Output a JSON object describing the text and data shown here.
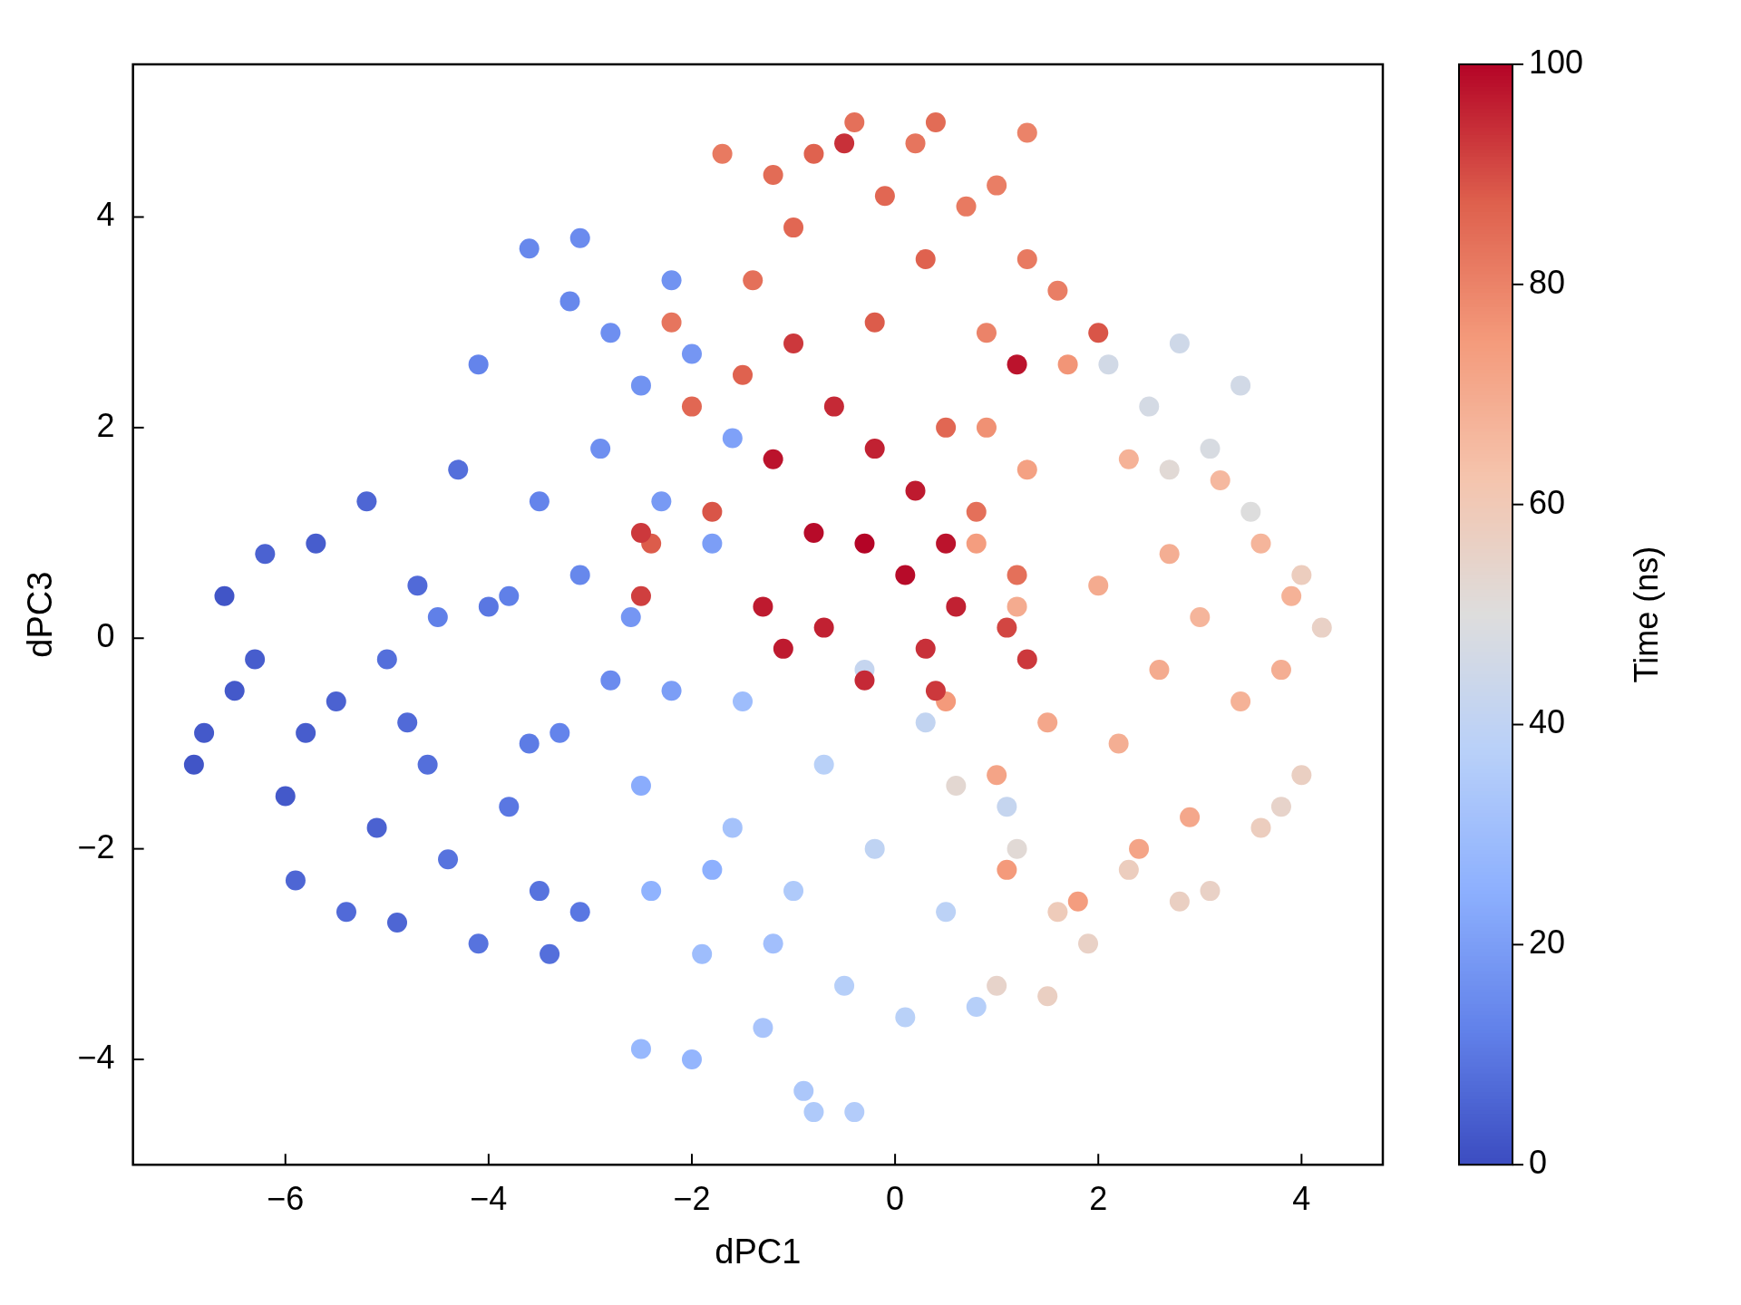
{
  "chart_data": {
    "type": "scatter",
    "xlabel": "dPC1",
    "ylabel": "dPC3",
    "clabel": "Time (ns)",
    "marker": "circle",
    "xlim": [
      -7.5,
      4.8
    ],
    "ylim": [
      -5,
      5.45
    ],
    "xticks": [
      -6,
      -4,
      -2,
      0,
      2,
      4
    ],
    "yticks": [
      -4,
      -2,
      0,
      2,
      4
    ],
    "clim": [
      0,
      100
    ],
    "cticks": [
      0,
      20,
      40,
      60,
      80,
      100
    ],
    "x": [
      -6.8,
      -6.6,
      -6.3,
      -6.2,
      -6.0,
      -5.9,
      -5.7,
      -5.5,
      -5.4,
      -5.2,
      -5.1,
      -5.0,
      -4.9,
      -4.7,
      -4.6,
      -4.4,
      -4.3,
      -4.1,
      -4.0,
      -3.8,
      -3.5,
      -3.4,
      -6.9,
      -6.5,
      -5.8,
      -4.8,
      -3.6,
      -3.1,
      -4.1,
      -3.6,
      -3.1,
      -3.2,
      -2.8,
      -2.2,
      -3.5,
      -2.9,
      -2.5,
      -3.8,
      -3.1,
      -2.6,
      -2.3,
      -2.0,
      -1.8,
      -2.2,
      -2.8,
      -3.3,
      -1.6,
      -4.5,
      -2.5,
      -2.4,
      -2.5,
      -2.0,
      -1.9,
      -1.6,
      -1.5,
      -1.3,
      -1.0,
      -0.9,
      -0.7,
      -0.5,
      -0.4,
      -0.2,
      0.1,
      0.3,
      0.5,
      0.8,
      1.1,
      -0.8,
      -1.2,
      -0.3,
      -1.8,
      1.0,
      1.5,
      1.9,
      1.2,
      2.3,
      2.8,
      3.1,
      3.6,
      4.0,
      2.1,
      2.5,
      2.8,
      3.4,
      3.1,
      3.5,
      2.7,
      4.2,
      4.0,
      0.6,
      3.8,
      1.6,
      0.5,
      0.8,
      1.0,
      1.2,
      1.3,
      1.5,
      1.7,
      1.8,
      2.0,
      2.2,
      2.3,
      2.6,
      2.7,
      2.9,
      3.2,
      3.4,
      3.6,
      3.8,
      3.9,
      1.1,
      2.4,
      0.9,
      3.0,
      -1.7,
      -1.4,
      -1.2,
      -1.0,
      -0.8,
      -0.4,
      -0.1,
      0.2,
      0.4,
      0.7,
      1.0,
      1.3,
      1.3,
      1.6,
      0.9,
      -2.2,
      -2.0,
      -2.4,
      -1.8,
      -0.2,
      0.5,
      0.8,
      -1.5,
      2.0,
      0.3,
      1.2,
      -1.0,
      -0.6,
      -0.2,
      0.2,
      -1.2,
      -0.8,
      -0.3,
      0.1,
      0.5,
      -1.3,
      -0.7,
      -0.3,
      0.3,
      0.6,
      -1.1,
      -2.5,
      -2.5,
      1.3,
      1.1,
      -0.5,
      1.2,
      0.4
    ],
    "values": [
      -0.9,
      0.4,
      -0.2,
      0.8,
      -1.5,
      -2.3,
      0.9,
      -0.6,
      -2.6,
      1.3,
      -1.8,
      -0.2,
      -2.7,
      0.5,
      -1.2,
      -2.1,
      1.6,
      -2.9,
      0.3,
      -1.6,
      -2.4,
      -3.0,
      -1.2,
      -0.5,
      -0.9,
      -0.8,
      -1.0,
      -2.6,
      2.6,
      3.7,
      3.8,
      3.2,
      2.9,
      3.4,
      1.3,
      1.8,
      2.4,
      0.4,
      0.6,
      0.2,
      1.3,
      2.7,
      0.9,
      -0.5,
      -0.4,
      -0.9,
      1.9,
      0.2,
      -1.4,
      -2.4,
      -3.9,
      -4.0,
      -3.0,
      -1.8,
      -0.6,
      -3.7,
      -2.4,
      -4.3,
      -1.2,
      -3.3,
      -4.5,
      -2.0,
      -3.6,
      -0.8,
      -2.6,
      -3.5,
      -1.6,
      -4.5,
      -2.9,
      -0.3,
      -2.2,
      -3.3,
      -3.4,
      -2.9,
      -2.0,
      -2.2,
      -2.5,
      -2.4,
      -1.8,
      -1.3,
      2.6,
      2.2,
      2.8,
      2.4,
      1.8,
      1.2,
      1.6,
      0.1,
      0.6,
      -1.4,
      -1.6,
      -2.6,
      -0.6,
      0.9,
      -1.3,
      0.3,
      1.6,
      -0.8,
      2.6,
      -2.5,
      0.5,
      -1.0,
      1.7,
      -0.3,
      0.8,
      -1.7,
      1.5,
      -0.6,
      0.9,
      -0.3,
      0.4,
      -2.2,
      -2.0,
      2.0,
      0.2,
      4.6,
      3.4,
      4.4,
      3.9,
      4.6,
      4.9,
      4.2,
      4.7,
      4.9,
      4.1,
      4.3,
      4.8,
      3.6,
      3.3,
      2.9,
      3.0,
      2.2,
      0.9,
      1.2,
      3.0,
      2.0,
      1.2,
      2.5,
      2.9,
      3.6,
      0.6,
      2.8,
      2.2,
      1.8,
      1.4,
      1.7,
      1.0,
      0.9,
      0.6,
      0.9,
      0.3,
      0.1,
      -0.4,
      -0.1,
      0.3,
      -0.1,
      1.0,
      0.4,
      -0.2,
      0.1,
      4.7,
      2.6,
      -0.5
    ],
    "cvalues": [
      3,
      2,
      4,
      5,
      3,
      6,
      4,
      5,
      7,
      6,
      5,
      8,
      6,
      7,
      8,
      9,
      8,
      9,
      10,
      10,
      9,
      8,
      2,
      3,
      4,
      7,
      11,
      10,
      13,
      14,
      15,
      14,
      16,
      17,
      13,
      16,
      17,
      12,
      14,
      18,
      19,
      18,
      20,
      20,
      15,
      13,
      21,
      12,
      24,
      26,
      28,
      27,
      30,
      32,
      30,
      33,
      35,
      34,
      38,
      37,
      36,
      40,
      38,
      41,
      39,
      37,
      42,
      35,
      31,
      42,
      25,
      55,
      57,
      56,
      52,
      58,
      57,
      56,
      58,
      57,
      46,
      47,
      45,
      46,
      48,
      50,
      52,
      56,
      58,
      53,
      55,
      59,
      75,
      74,
      72,
      70,
      73,
      71,
      76,
      74,
      70,
      69,
      68,
      70,
      69,
      71,
      66,
      68,
      67,
      69,
      68,
      75,
      72,
      77,
      67,
      82,
      84,
      85,
      86,
      87,
      84,
      86,
      83,
      85,
      82,
      81,
      80,
      82,
      81,
      80,
      83,
      86,
      88,
      89,
      88,
      86,
      84,
      87,
      89,
      87,
      84,
      93,
      95,
      96,
      97,
      98,
      99,
      100,
      99,
      98,
      97,
      96,
      95,
      94,
      96,
      97,
      93,
      92,
      93,
      91,
      94,
      98,
      93
    ]
  }
}
